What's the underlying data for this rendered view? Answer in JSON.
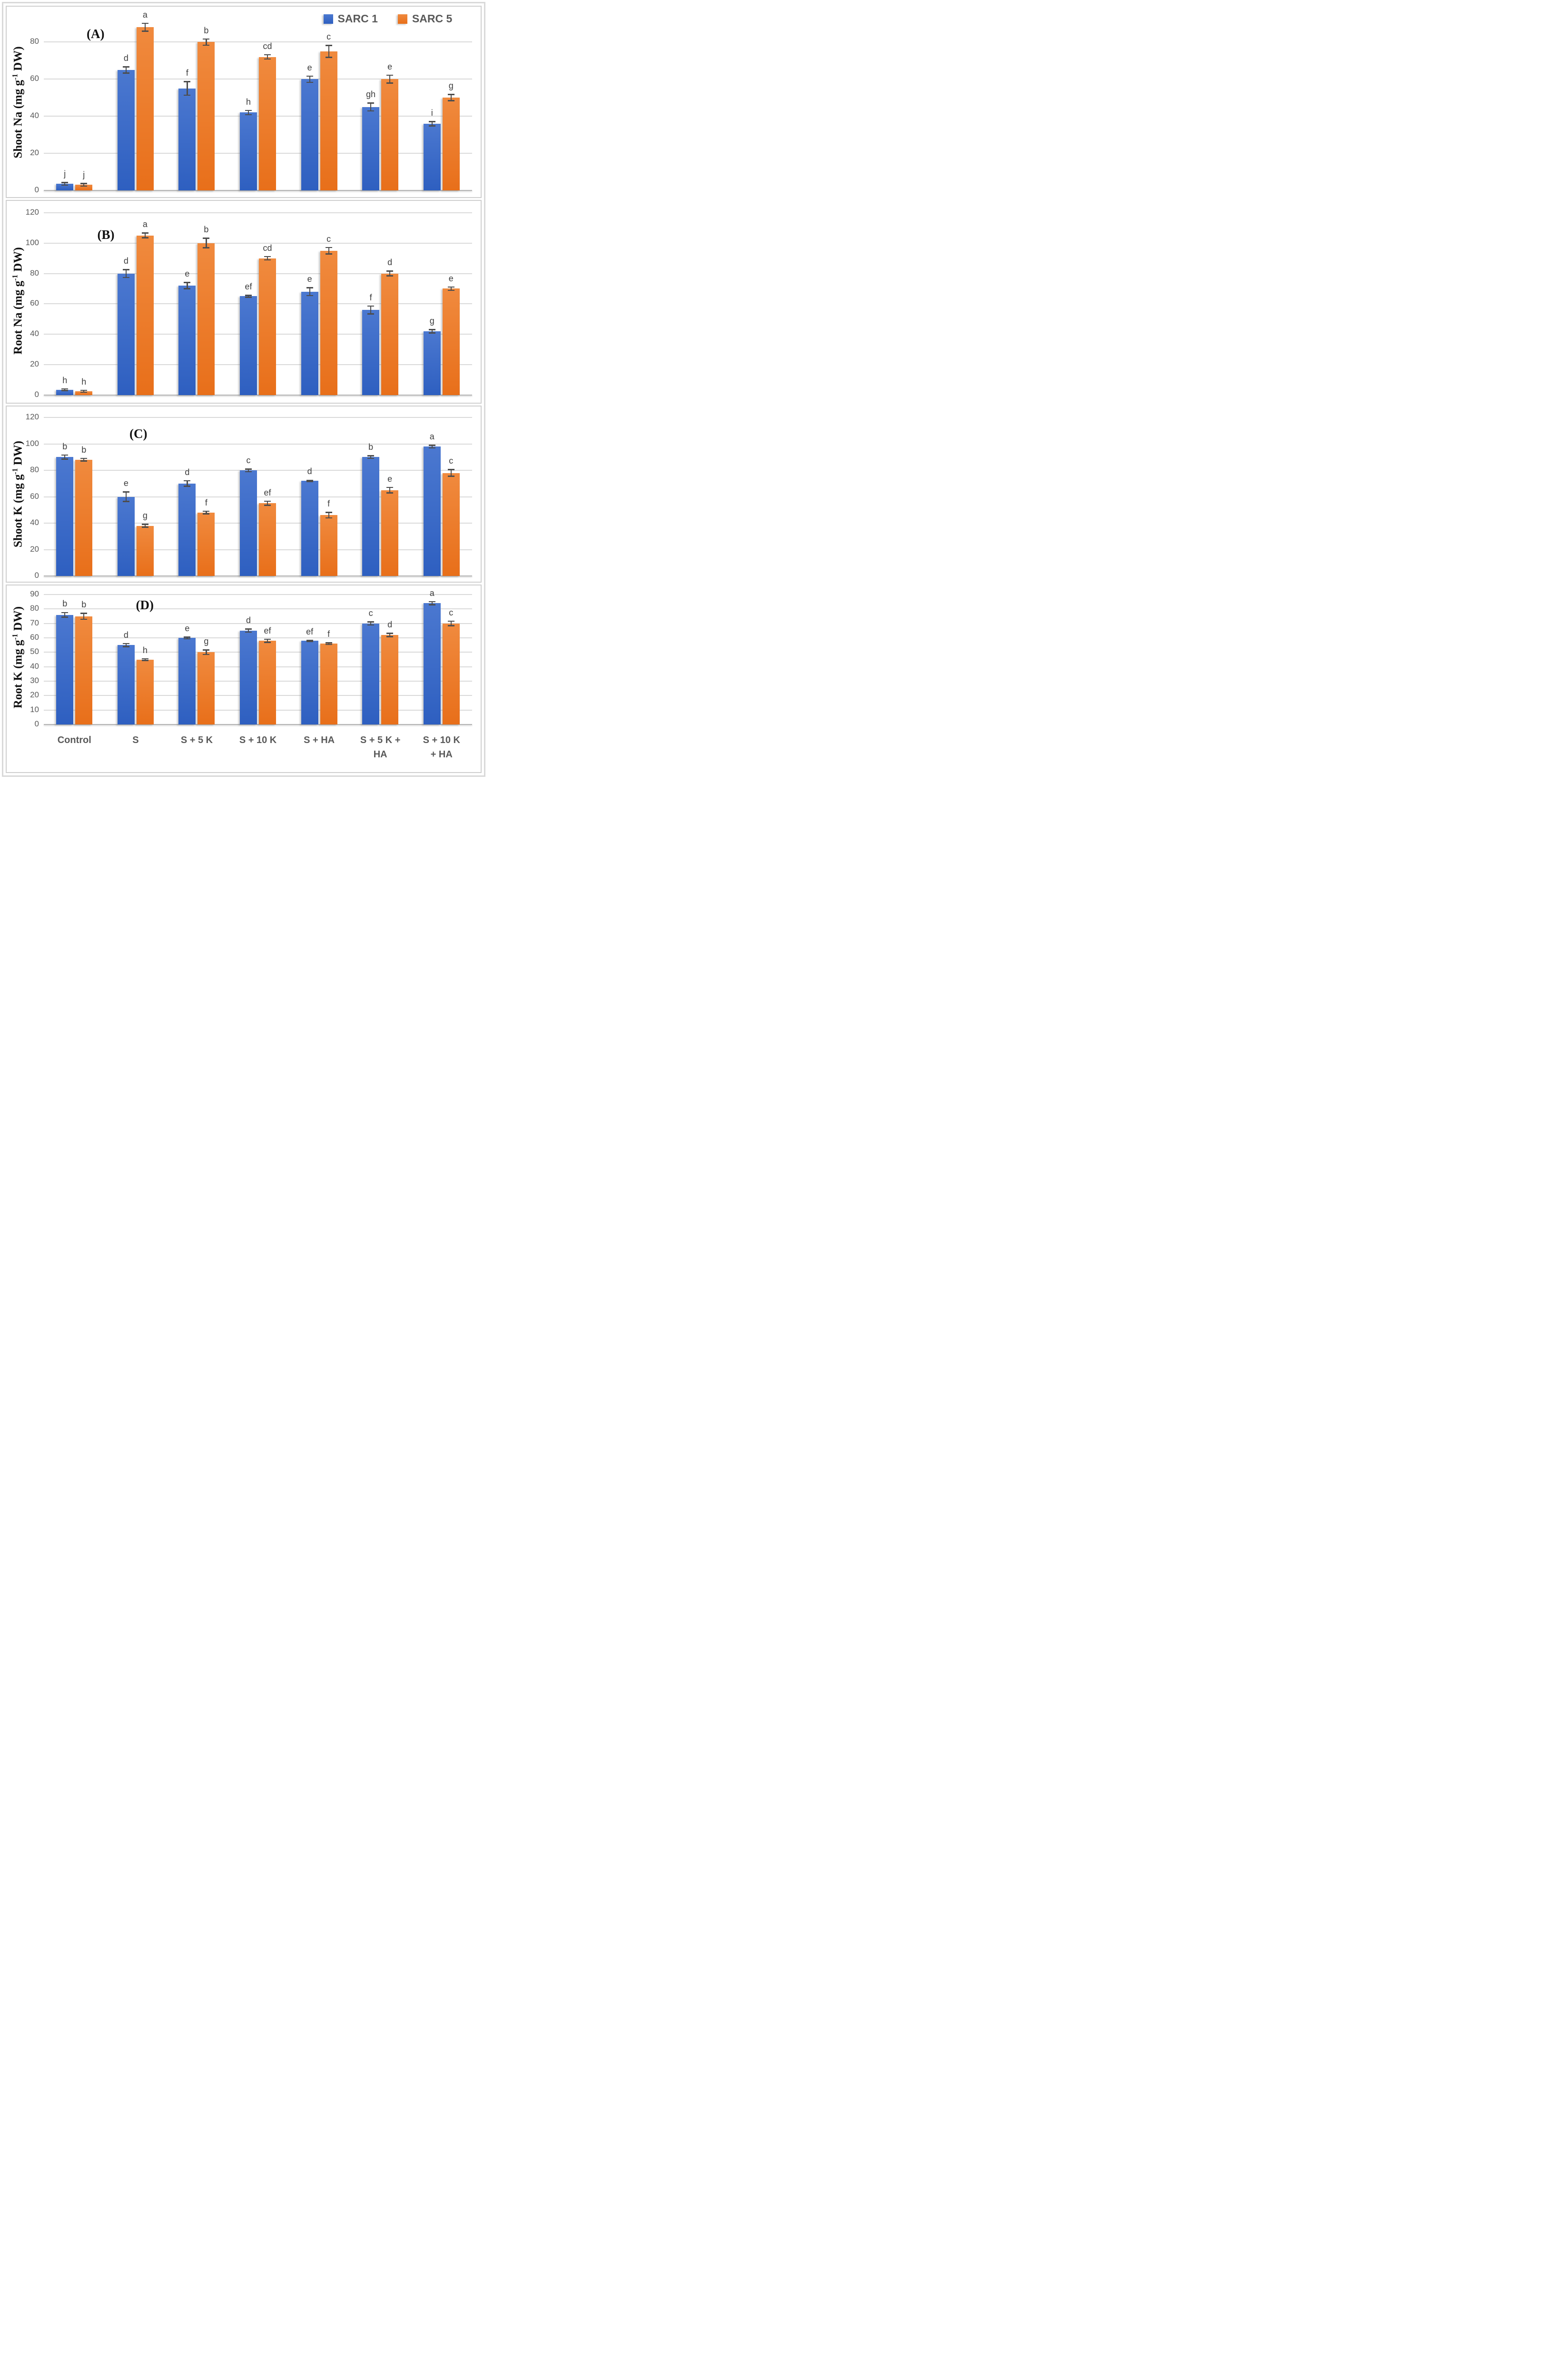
{
  "figure": {
    "description": "Four stacked bar-chart panels comparing SARC 1 and SARC 5 wheat varieties across salinity treatments",
    "panel_order": [
      "A",
      "B",
      "C",
      "D"
    ]
  },
  "legend": {
    "items": [
      {
        "label": "SARC 1",
        "series": "s1"
      },
      {
        "label": "SARC 5",
        "series": "s5"
      }
    ]
  },
  "colors": {
    "sarc1_blue_top": "#4b78d0",
    "sarc1_blue_bottom": "#2e5fc0",
    "sarc5_orange_top": "#f08a3e",
    "sarc5_orange_bottom": "#e86f1a",
    "error_bar": "#4d4d4d",
    "gridline": "#dadada",
    "axis_text": "#595959",
    "panel_border": "#cfcfcf"
  },
  "x_axis": {
    "labels": [
      {
        "line1": "Control",
        "line2": ""
      },
      {
        "line1": "S",
        "line2": ""
      },
      {
        "line1": "S + 5 K",
        "line2": ""
      },
      {
        "line1": "S + 10 K",
        "line2": ""
      },
      {
        "line1": "S +  HA",
        "line2": ""
      },
      {
        "line1": "S + 5 K +",
        "line2": "HA"
      },
      {
        "line1": "S + 10 K",
        "line2": "+ HA"
      }
    ]
  },
  "chart_data": [
    {
      "id": "A",
      "type": "bar",
      "panel_label": "(A)",
      "ylabel": {
        "pre": "Shoot Na (mg g",
        "sup": "-1",
        "post": " DW)"
      },
      "ylim": [
        0,
        95
      ],
      "yticks": [
        0,
        20,
        40,
        60,
        80
      ],
      "grid": true,
      "categories": [
        "Control",
        "S",
        "S + 5 K",
        "S + 10 K",
        "S + HA",
        "S + 5 K + HA",
        "S + 10 K + HA"
      ],
      "series": [
        {
          "name": "SARC 1",
          "values": [
            3.5,
            65,
            55,
            42,
            60,
            45,
            36
          ],
          "errors": [
            1,
            2,
            4,
            1.5,
            2,
            2.5,
            1.5
          ],
          "letters": [
            "j",
            "d",
            "f",
            "h",
            "e",
            "gh",
            "i"
          ]
        },
        {
          "name": "SARC 5",
          "values": [
            3,
            88,
            80,
            72,
            75,
            60,
            50
          ],
          "errors": [
            1,
            2.5,
            2,
            1.5,
            3.5,
            2.5,
            2
          ],
          "letters": [
            "j",
            "a",
            "b",
            "cd",
            "c",
            "e",
            "g"
          ]
        }
      ]
    },
    {
      "id": "B",
      "type": "bar",
      "panel_label": "(B)",
      "ylabel": {
        "pre": "Root Na (mg g",
        "sup": "-1",
        "post": " DW)"
      },
      "ylim": [
        0,
        124
      ],
      "yticks": [
        0,
        20,
        40,
        60,
        80,
        100,
        120
      ],
      "grid": true,
      "categories": [
        "Control",
        "S",
        "S + 5 K",
        "S + 10 K",
        "S + HA",
        "S + 5 K + HA",
        "S + 10 K + HA"
      ],
      "series": [
        {
          "name": "SARC 1",
          "values": [
            3.5,
            80,
            72,
            65,
            68,
            56,
            42
          ],
          "errors": [
            1,
            3,
            2.5,
            1,
            3,
            3,
            1.5
          ],
          "letters": [
            "h",
            "d",
            "e",
            "ef",
            "e",
            "f",
            "g"
          ]
        },
        {
          "name": "SARC 5",
          "values": [
            2.5,
            105,
            100,
            90,
            95,
            80,
            70
          ],
          "errors": [
            1,
            2,
            3.5,
            1.5,
            2.5,
            2,
            1.5
          ],
          "letters": [
            "h",
            "a",
            "b",
            "cd",
            "c",
            "d",
            "e"
          ]
        }
      ]
    },
    {
      "id": "C",
      "type": "bar",
      "panel_label": "(C)",
      "ylabel": {
        "pre": "Shoot K (mg g",
        "sup": "-1",
        "post": " DW)"
      },
      "ylim": [
        0,
        124
      ],
      "yticks": [
        0,
        20,
        40,
        60,
        80,
        100,
        120
      ],
      "grid": true,
      "categories": [
        "Control",
        "S",
        "S + 5 K",
        "S + 10 K",
        "S + HA",
        "S + 5 K + HA",
        "S + 10 K + HA"
      ],
      "series": [
        {
          "name": "SARC 1",
          "values": [
            90,
            60,
            70,
            80,
            72,
            90,
            98
          ],
          "errors": [
            2,
            4,
            2.5,
            1.5,
            1,
            1.5,
            1.5
          ],
          "letters": [
            "b",
            "e",
            "d",
            "c",
            "d",
            "b",
            "a"
          ]
        },
        {
          "name": "SARC 5",
          "values": [
            88,
            38,
            48,
            55,
            46,
            65,
            78
          ],
          "errors": [
            1.5,
            1.5,
            1.5,
            2,
            2.5,
            2.5,
            3
          ],
          "letters": [
            "b",
            "g",
            "f",
            "ef",
            "f",
            "e",
            "c"
          ]
        }
      ]
    },
    {
      "id": "D",
      "type": "bar",
      "panel_label": "(D)",
      "ylabel": {
        "pre": "Root K (mg g",
        "sup": "-1",
        "post": " DW)"
      },
      "ylim": [
        0,
        93
      ],
      "yticks": [
        0,
        10,
        20,
        30,
        40,
        50,
        60,
        70,
        80,
        90
      ],
      "grid": true,
      "categories": [
        "Control",
        "S",
        "S + 5 K",
        "S + 10 K",
        "S + HA",
        "S + 5 K + HA",
        "S + 10 K + HA"
      ],
      "series": [
        {
          "name": "SARC 1",
          "values": [
            76,
            55,
            60,
            65,
            58,
            70,
            84
          ],
          "errors": [
            2,
            1.5,
            1,
            1.5,
            0.8,
            1.5,
            1.5
          ],
          "letters": [
            "b",
            "d",
            "e",
            "d",
            "ef",
            "c",
            "a"
          ]
        },
        {
          "name": "SARC 5",
          "values": [
            75,
            45,
            50,
            58,
            56,
            62,
            70
          ],
          "errors": [
            2.5,
            1,
            2,
            1.5,
            1,
            1.5,
            2
          ],
          "letters": [
            "b",
            "h",
            "g",
            "ef",
            "f",
            "d",
            "c"
          ]
        }
      ]
    }
  ]
}
